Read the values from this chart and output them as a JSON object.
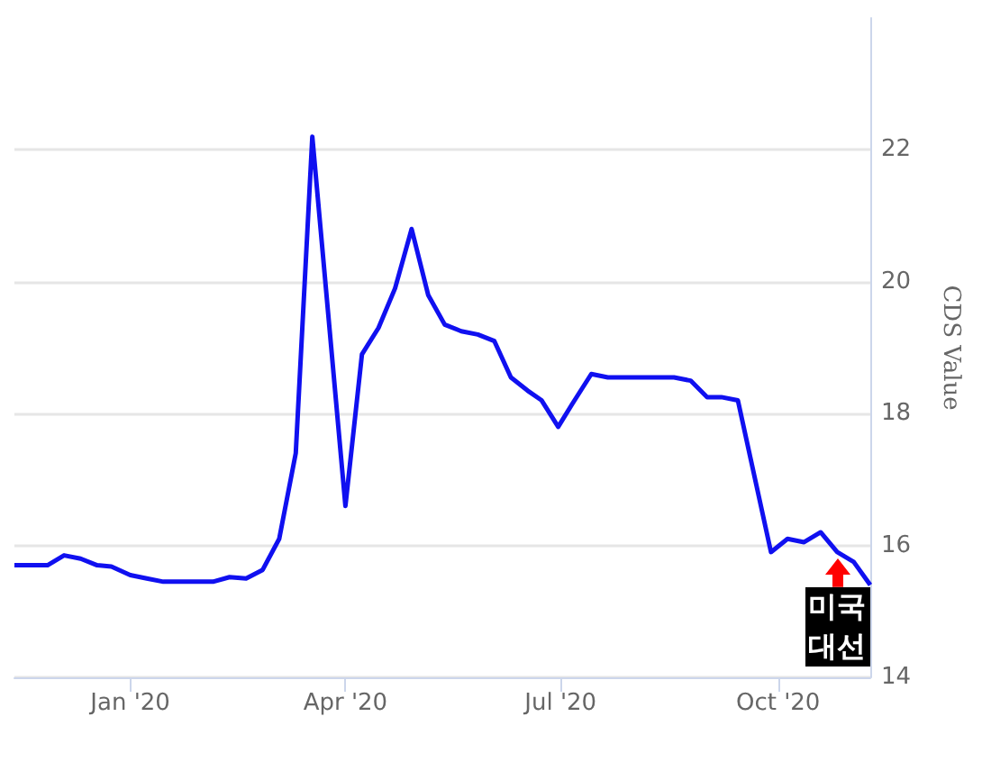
{
  "chart_data": {
    "type": "line",
    "ylabel": "CDS Value",
    "x": [
      "2019-11-13",
      "2019-11-27",
      "2019-12-04",
      "2019-12-11",
      "2019-12-18",
      "2019-12-24",
      "2020-01-01",
      "2020-01-08",
      "2020-01-15",
      "2020-02-05",
      "2020-02-12",
      "2020-02-19",
      "2020-02-26",
      "2020-03-04",
      "2020-03-11",
      "2020-03-18",
      "2020-04-01",
      "2020-04-08",
      "2020-04-15",
      "2020-04-22",
      "2020-04-29",
      "2020-05-06",
      "2020-05-13",
      "2020-05-20",
      "2020-05-27",
      "2020-06-03",
      "2020-06-10",
      "2020-06-17",
      "2020-06-23",
      "2020-06-30",
      "2020-07-06",
      "2020-07-14",
      "2020-07-21",
      "2020-08-04",
      "2020-08-18",
      "2020-08-25",
      "2020-09-01",
      "2020-09-07",
      "2020-09-14",
      "2020-09-28",
      "2020-10-05",
      "2020-10-12",
      "2020-10-19",
      "2020-10-26",
      "2020-11-02",
      "2020-11-09"
    ],
    "series": [
      {
        "color": "#1010f0",
        "values": [
          15.7,
          15.7,
          15.85,
          15.8,
          15.7,
          15.68,
          15.55,
          15.5,
          15.45,
          15.45,
          15.52,
          15.5,
          15.63,
          16.1,
          17.4,
          22.2,
          16.6,
          18.9,
          19.3,
          19.9,
          20.8,
          19.8,
          19.35,
          19.25,
          19.2,
          19.1,
          18.55,
          18.35,
          18.2,
          17.8,
          18.15,
          18.6,
          18.55,
          18.55,
          18.55,
          18.5,
          18.25,
          18.25,
          18.2,
          15.9,
          16.1,
          16.05,
          16.2,
          15.9,
          15.75,
          15.4
        ]
      }
    ],
    "xlim": [
      "2019-11-13",
      "2020-11-09"
    ],
    "xticks": [
      {
        "value": "2020-01-01",
        "label": "Jan '20"
      },
      {
        "value": "2020-04-01",
        "label": "Apr '20"
      },
      {
        "value": "2020-07-01",
        "label": "Jul '20"
      },
      {
        "value": "2020-10-01",
        "label": "Oct '20"
      }
    ],
    "ylim": [
      14,
      24
    ],
    "yticks": [
      14,
      16,
      18,
      20,
      22
    ],
    "grid": "y",
    "marker": "none",
    "line_style": "solid",
    "annotations": [
      {
        "text": "미국 대선",
        "x": "2020-10-26",
        "y": 15.8
      }
    ]
  }
}
